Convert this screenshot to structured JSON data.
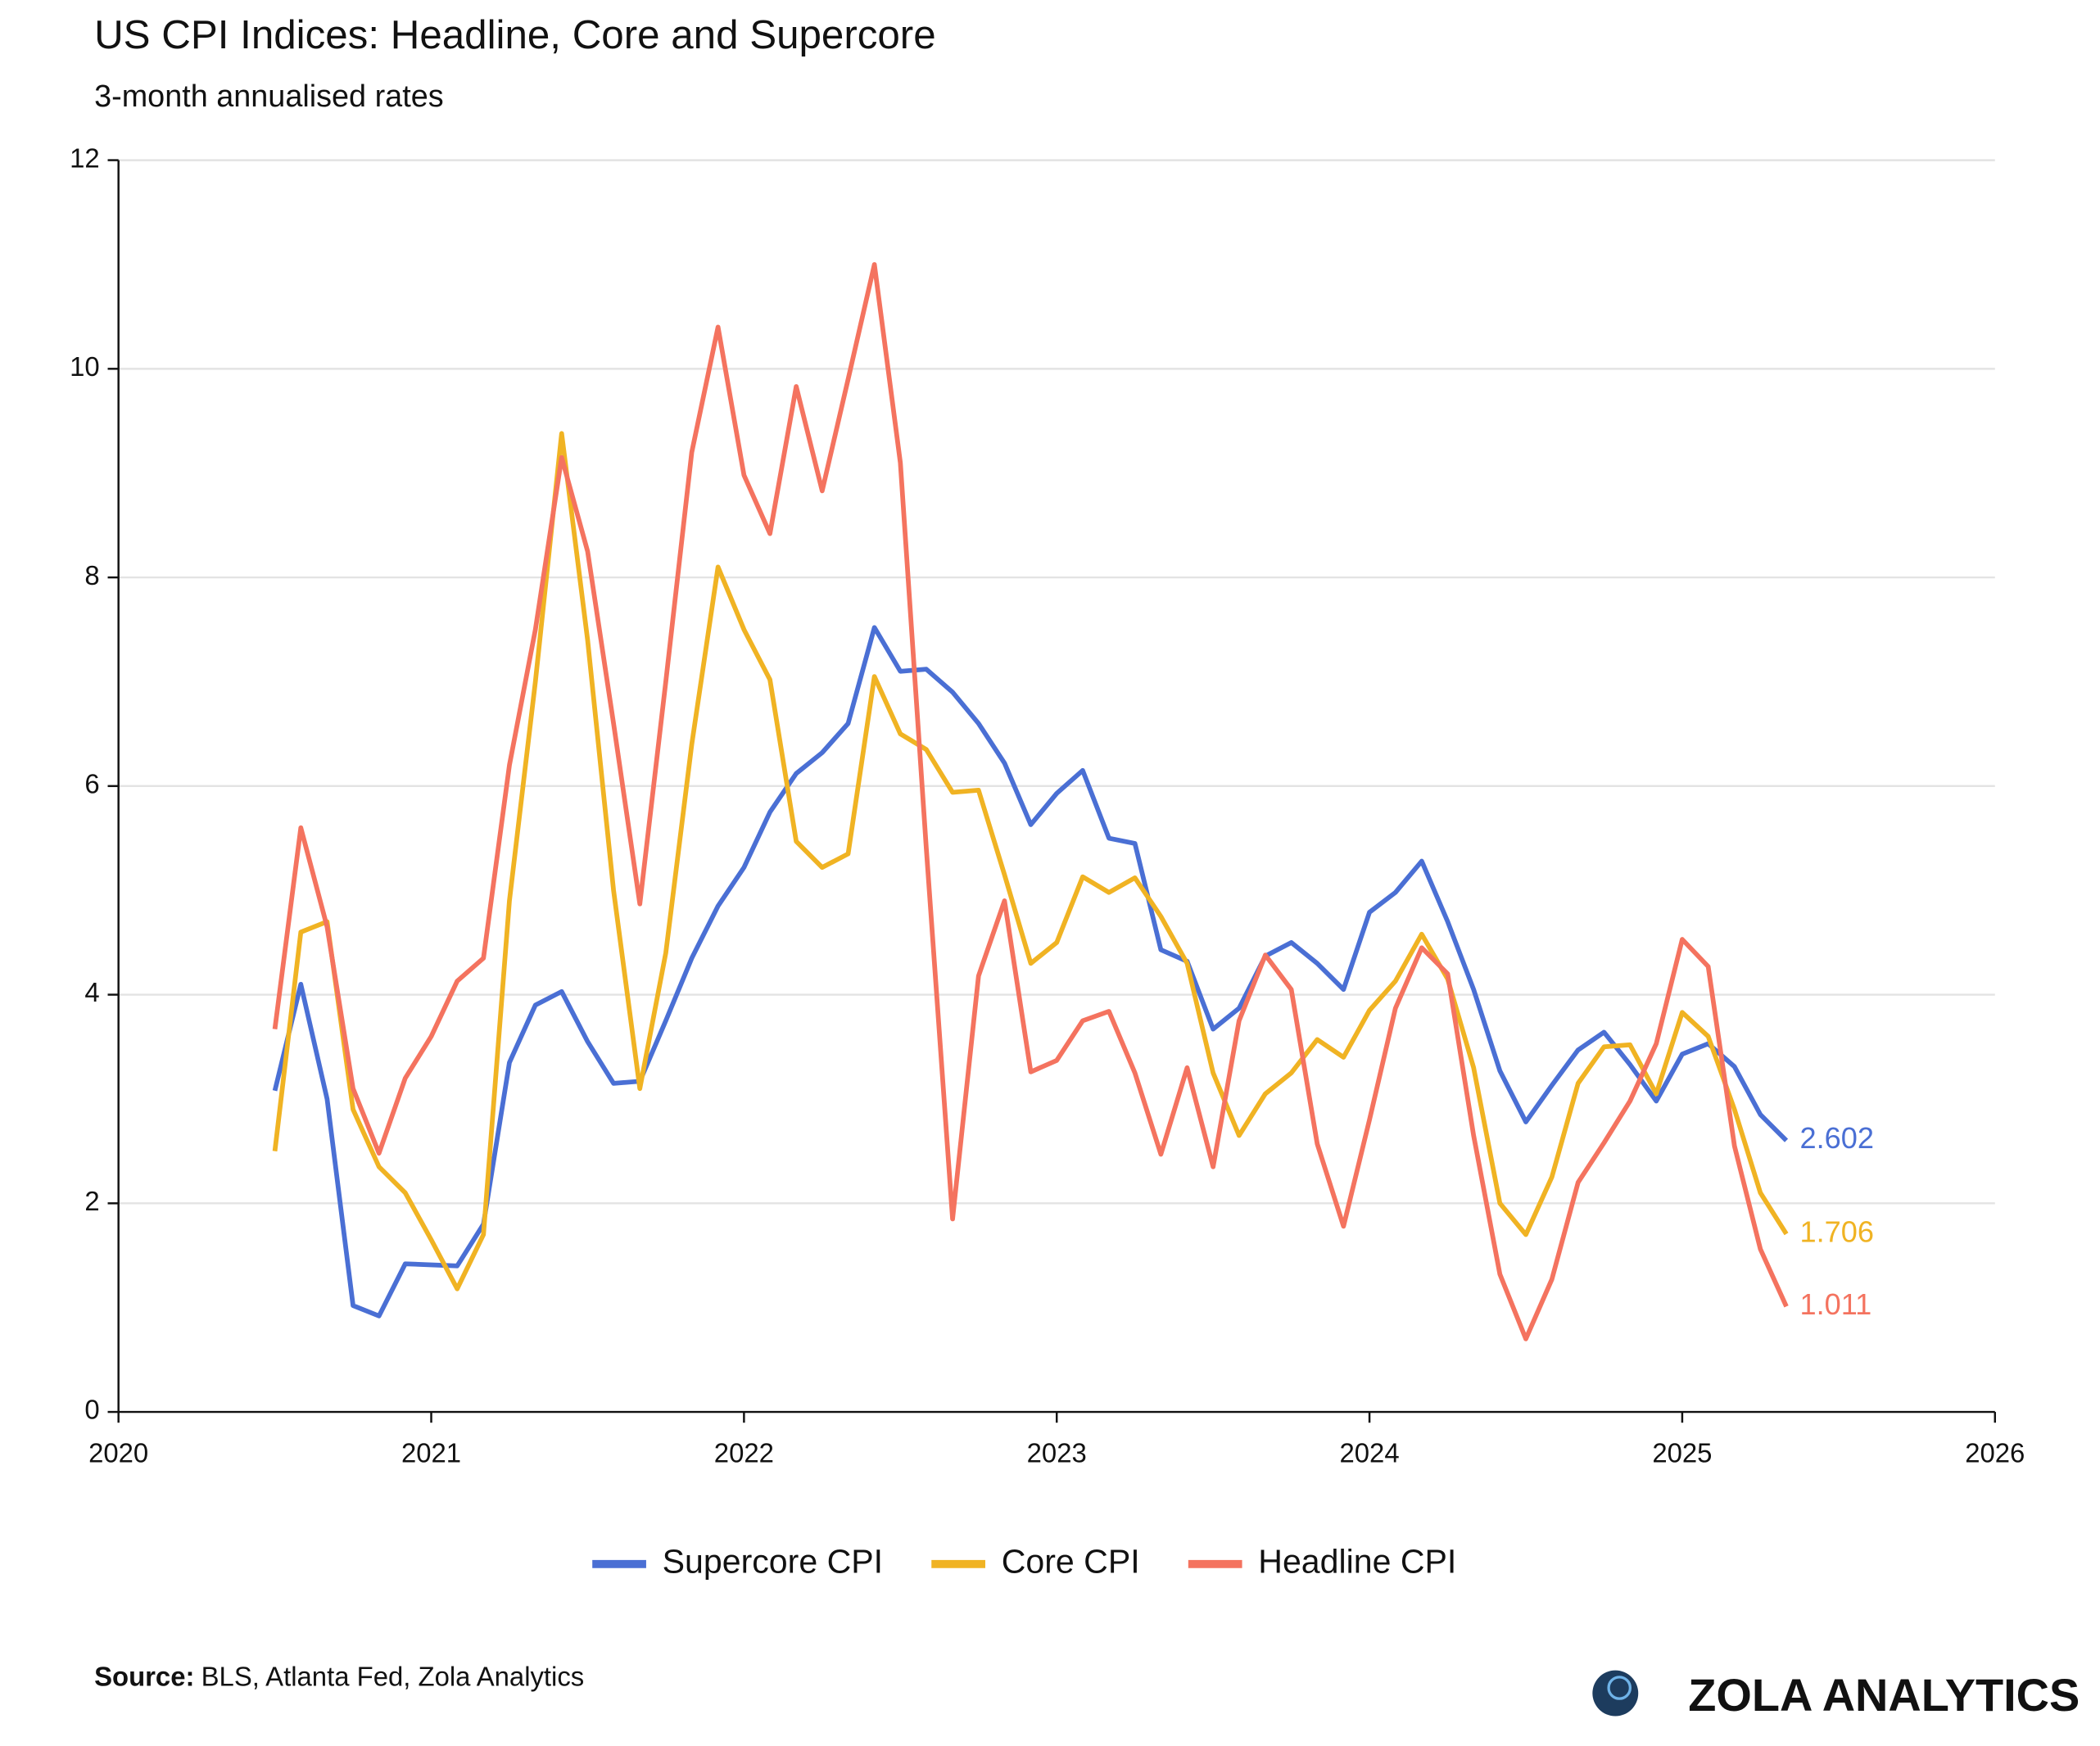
{
  "chart_data": {
    "type": "line",
    "title": "US CPI Indices: Headline, Core and Supercore",
    "subtitle": "3-month annualised rates",
    "x": [
      2020.5,
      2020.583,
      2020.667,
      2020.75,
      2020.833,
      2020.917,
      2021,
      2021.083,
      2021.167,
      2021.25,
      2021.333,
      2021.417,
      2021.5,
      2021.583,
      2021.667,
      2021.75,
      2021.833,
      2021.917,
      2022,
      2022.083,
      2022.167,
      2022.25,
      2022.333,
      2022.417,
      2022.5,
      2022.583,
      2022.667,
      2022.75,
      2022.833,
      2022.917,
      2023,
      2023.083,
      2023.167,
      2023.25,
      2023.333,
      2023.417,
      2023.5,
      2023.583,
      2023.667,
      2023.75,
      2023.833,
      2023.917,
      2024,
      2024.083,
      2024.167,
      2024.25,
      2024.333,
      2024.417,
      2024.5,
      2024.583,
      2024.667,
      2024.75,
      2024.833,
      2024.917,
      2025,
      2025.083,
      2025.167,
      2025.25,
      2025.333
    ],
    "series": [
      {
        "name": "Supercore CPI",
        "color": "#4a6fd4",
        "values": [
          3.08,
          4.1,
          3.0,
          1.02,
          0.92,
          1.42,
          1.41,
          1.4,
          1.8,
          3.35,
          3.9,
          4.03,
          3.55,
          3.15,
          3.17,
          3.75,
          4.35,
          4.85,
          5.22,
          5.75,
          6.12,
          6.32,
          6.6,
          7.52,
          7.1,
          7.12,
          6.9,
          6.6,
          6.22,
          5.63,
          5.93,
          6.15,
          5.5,
          5.45,
          4.43,
          4.32,
          3.67,
          3.87,
          4.37,
          4.5,
          4.3,
          4.05,
          4.79,
          4.98,
          5.28,
          4.7,
          4.05,
          3.27,
          2.78,
          3.13,
          3.47,
          3.64,
          3.33,
          2.98,
          3.43,
          3.53,
          3.31,
          2.85,
          2.602
        ]
      },
      {
        "name": "Core CPI",
        "color": "#f0b323",
        "values": [
          2.5,
          4.6,
          4.7,
          2.9,
          2.35,
          2.1,
          1.65,
          1.18,
          1.7,
          4.9,
          7.0,
          9.38,
          7.4,
          5.0,
          3.1,
          4.4,
          6.4,
          8.1,
          7.5,
          7.02,
          5.47,
          5.22,
          5.35,
          7.05,
          6.5,
          6.35,
          5.94,
          5.96,
          5.15,
          4.3,
          4.5,
          5.13,
          4.98,
          5.12,
          4.75,
          4.3,
          3.25,
          2.65,
          3.05,
          3.25,
          3.57,
          3.4,
          3.85,
          4.13,
          4.58,
          4.15,
          3.3,
          2.0,
          1.7,
          2.25,
          3.15,
          3.5,
          3.52,
          3.05,
          3.83,
          3.6,
          2.9,
          2.1,
          1.706
        ]
      },
      {
        "name": "Headline CPI",
        "color": "#f4735f",
        "values": [
          3.67,
          5.6,
          4.65,
          3.1,
          2.48,
          3.2,
          3.6,
          4.13,
          4.35,
          6.2,
          7.5,
          9.15,
          8.25,
          6.6,
          4.87,
          7.0,
          9.2,
          10.4,
          8.98,
          8.42,
          9.83,
          8.83,
          9.9,
          11.0,
          9.1,
          5.4,
          1.85,
          4.18,
          4.9,
          3.26,
          3.37,
          3.75,
          3.84,
          3.25,
          2.47,
          3.3,
          2.35,
          3.75,
          4.38,
          4.05,
          2.57,
          1.78,
          2.8,
          3.87,
          4.45,
          4.2,
          2.65,
          1.32,
          0.7,
          1.27,
          2.2,
          2.58,
          2.98,
          3.53,
          4.53,
          4.27,
          2.55,
          1.56,
          1.011
        ]
      }
    ],
    "xlim": [
      2020,
      2026
    ],
    "xticks": [
      2020,
      2021,
      2022,
      2023,
      2024,
      2025,
      2026
    ],
    "ylim": [
      0,
      12
    ],
    "yticks": [
      0,
      2,
      4,
      6,
      8,
      10,
      12
    ],
    "grid": true,
    "legend": "bottom",
    "source": {
      "label": "Source:",
      "text": "BLS, Atlanta Fed, Zola Analytics"
    },
    "brand": "ZOLA ANALYTICS"
  }
}
